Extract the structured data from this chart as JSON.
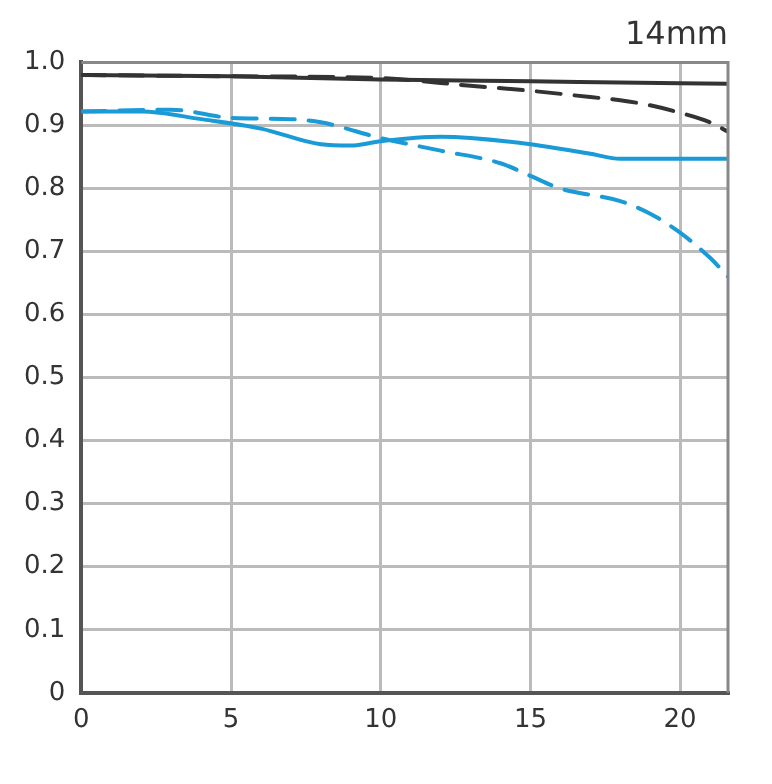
{
  "chart_data": {
    "type": "line",
    "title": "14mm",
    "xlim": [
      0,
      21.6
    ],
    "xticks": [
      0,
      5,
      10,
      15,
      20
    ],
    "ylim": [
      0,
      1.0
    ],
    "yticks": [
      {
        "value": 0,
        "label": "0"
      },
      0.1,
      0.2,
      0.3,
      0.4,
      0.5,
      0.6,
      0.7,
      0.8,
      0.9,
      {
        "value": 1,
        "label": "1.0"
      }
    ],
    "grid": true,
    "legend": false,
    "marker": "none",
    "series": [
      {
        "color": "#333333",
        "line_style": "solid",
        "x": [
          0,
          5,
          10,
          15,
          20,
          21.6
        ],
        "values": [
          0.98,
          0.978,
          0.973,
          0.97,
          0.967,
          0.966
        ]
      },
      {
        "color": "#333333",
        "line_style": "dashed",
        "x": [
          0,
          5,
          10,
          13,
          15,
          17,
          18,
          19,
          20,
          21,
          21.6
        ],
        "values": [
          0.98,
          0.978,
          0.975,
          0.963,
          0.955,
          0.945,
          0.94,
          0.932,
          0.92,
          0.905,
          0.89
        ]
      },
      {
        "color": "#1a9ad6",
        "line_style": "solid",
        "x": [
          0,
          2,
          4,
          6,
          8,
          9,
          10,
          12,
          13,
          15,
          17,
          18,
          20,
          21.6
        ],
        "values": [
          0.922,
          0.922,
          0.91,
          0.895,
          0.87,
          0.868,
          0.875,
          0.882,
          0.88,
          0.87,
          0.855,
          0.847,
          0.847,
          0.847
        ]
      },
      {
        "color": "#1a9ad6",
        "line_style": "dashed",
        "x": [
          0,
          3,
          5,
          7,
          8,
          10,
          12,
          14,
          15,
          16,
          18,
          19,
          20,
          21,
          21.6
        ],
        "values": [
          0.922,
          0.925,
          0.912,
          0.91,
          0.905,
          0.88,
          0.86,
          0.84,
          0.82,
          0.8,
          0.78,
          0.76,
          0.73,
          0.69,
          0.66
        ]
      }
    ]
  }
}
